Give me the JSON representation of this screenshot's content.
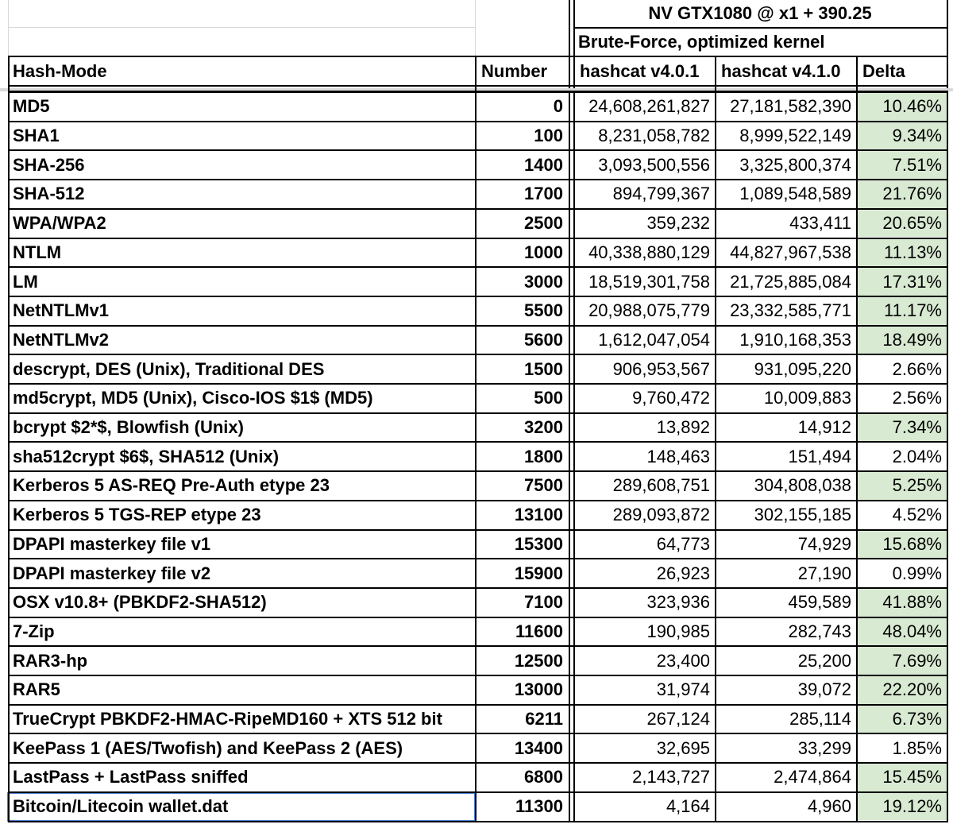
{
  "header": {
    "gpu": "NV GTX1080 @ x1 + 390.25",
    "mode": "Brute-Force, optimized kernel",
    "col_hash_mode": "Hash-Mode",
    "col_number": "Number",
    "col_v401": "hashcat v4.0.1",
    "col_v410": "hashcat v4.1.0",
    "col_delta": "Delta"
  },
  "colors": {
    "delta_highlight": "#d9ead3",
    "selection": "#4a7fd0"
  },
  "rows": [
    {
      "name": "MD5",
      "number": "0",
      "v401": "24,608,261,827",
      "v410": "27,181,582,390",
      "delta": "10.46%",
      "highlight": true
    },
    {
      "name": "SHA1",
      "number": "100",
      "v401": "8,231,058,782",
      "v410": "8,999,522,149",
      "delta": "9.34%",
      "highlight": true
    },
    {
      "name": "SHA-256",
      "number": "1400",
      "v401": "3,093,500,556",
      "v410": "3,325,800,374",
      "delta": "7.51%",
      "highlight": true
    },
    {
      "name": "SHA-512",
      "number": "1700",
      "v401": "894,799,367",
      "v410": "1,089,548,589",
      "delta": "21.76%",
      "highlight": true
    },
    {
      "name": "WPA/WPA2",
      "number": "2500",
      "v401": "359,232",
      "v410": "433,411",
      "delta": "20.65%",
      "highlight": true
    },
    {
      "name": "NTLM",
      "number": "1000",
      "v401": "40,338,880,129",
      "v410": "44,827,967,538",
      "delta": "11.13%",
      "highlight": true
    },
    {
      "name": "LM",
      "number": "3000",
      "v401": "18,519,301,758",
      "v410": "21,725,885,084",
      "delta": "17.31%",
      "highlight": true
    },
    {
      "name": "NetNTLMv1",
      "number": "5500",
      "v401": "20,988,075,779",
      "v410": "23,332,585,771",
      "delta": "11.17%",
      "highlight": true
    },
    {
      "name": "NetNTLMv2",
      "number": "5600",
      "v401": "1,612,047,054",
      "v410": "1,910,168,353",
      "delta": "18.49%",
      "highlight": true
    },
    {
      "name": "descrypt, DES (Unix), Traditional DES",
      "number": "1500",
      "v401": "906,953,567",
      "v410": "931,095,220",
      "delta": "2.66%",
      "highlight": false
    },
    {
      "name": "md5crypt, MD5 (Unix), Cisco-IOS $1$ (MD5)",
      "number": "500",
      "v401": "9,760,472",
      "v410": "10,009,883",
      "delta": "2.56%",
      "highlight": false
    },
    {
      "name": "bcrypt $2*$, Blowfish (Unix)",
      "number": "3200",
      "v401": "13,892",
      "v410": "14,912",
      "delta": "7.34%",
      "highlight": true
    },
    {
      "name": "sha512crypt $6$, SHA512 (Unix)",
      "number": "1800",
      "v401": "148,463",
      "v410": "151,494",
      "delta": "2.04%",
      "highlight": false
    },
    {
      "name": "Kerberos 5 AS-REQ Pre-Auth etype 23",
      "number": "7500",
      "v401": "289,608,751",
      "v410": "304,808,038",
      "delta": "5.25%",
      "highlight": true
    },
    {
      "name": "Kerberos 5 TGS-REP etype 23",
      "number": "13100",
      "v401": "289,093,872",
      "v410": "302,155,185",
      "delta": "4.52%",
      "highlight": false
    },
    {
      "name": "DPAPI masterkey file v1",
      "number": "15300",
      "v401": "64,773",
      "v410": "74,929",
      "delta": "15.68%",
      "highlight": true
    },
    {
      "name": "DPAPI masterkey file v2",
      "number": "15900",
      "v401": "26,923",
      "v410": "27,190",
      "delta": "0.99%",
      "highlight": false
    },
    {
      "name": "OSX v10.8+ (PBKDF2-SHA512)",
      "number": "7100",
      "v401": "323,936",
      "v410": "459,589",
      "delta": "41.88%",
      "highlight": true
    },
    {
      "name": "7-Zip",
      "number": "11600",
      "v401": "190,985",
      "v410": "282,743",
      "delta": "48.04%",
      "highlight": true
    },
    {
      "name": "RAR3-hp",
      "number": "12500",
      "v401": "23,400",
      "v410": "25,200",
      "delta": "7.69%",
      "highlight": true
    },
    {
      "name": "RAR5",
      "number": "13000",
      "v401": "31,974",
      "v410": "39,072",
      "delta": "22.20%",
      "highlight": true
    },
    {
      "name": "TrueCrypt PBKDF2-HMAC-RipeMD160 + XTS 512 bit",
      "number": "6211",
      "v401": "267,124",
      "v410": "285,114",
      "delta": "6.73%",
      "highlight": true
    },
    {
      "name": "KeePass 1 (AES/Twofish) and KeePass 2 (AES)",
      "number": "13400",
      "v401": "32,695",
      "v410": "33,299",
      "delta": "1.85%",
      "highlight": false
    },
    {
      "name": "LastPass + LastPass sniffed",
      "number": "6800",
      "v401": "2,143,727",
      "v410": "2,474,864",
      "delta": "15.45%",
      "highlight": true
    },
    {
      "name": "Bitcoin/Litecoin wallet.dat",
      "number": "11300",
      "v401": "4,164",
      "v410": "4,960",
      "delta": "19.12%",
      "highlight": true,
      "selected": true
    }
  ]
}
